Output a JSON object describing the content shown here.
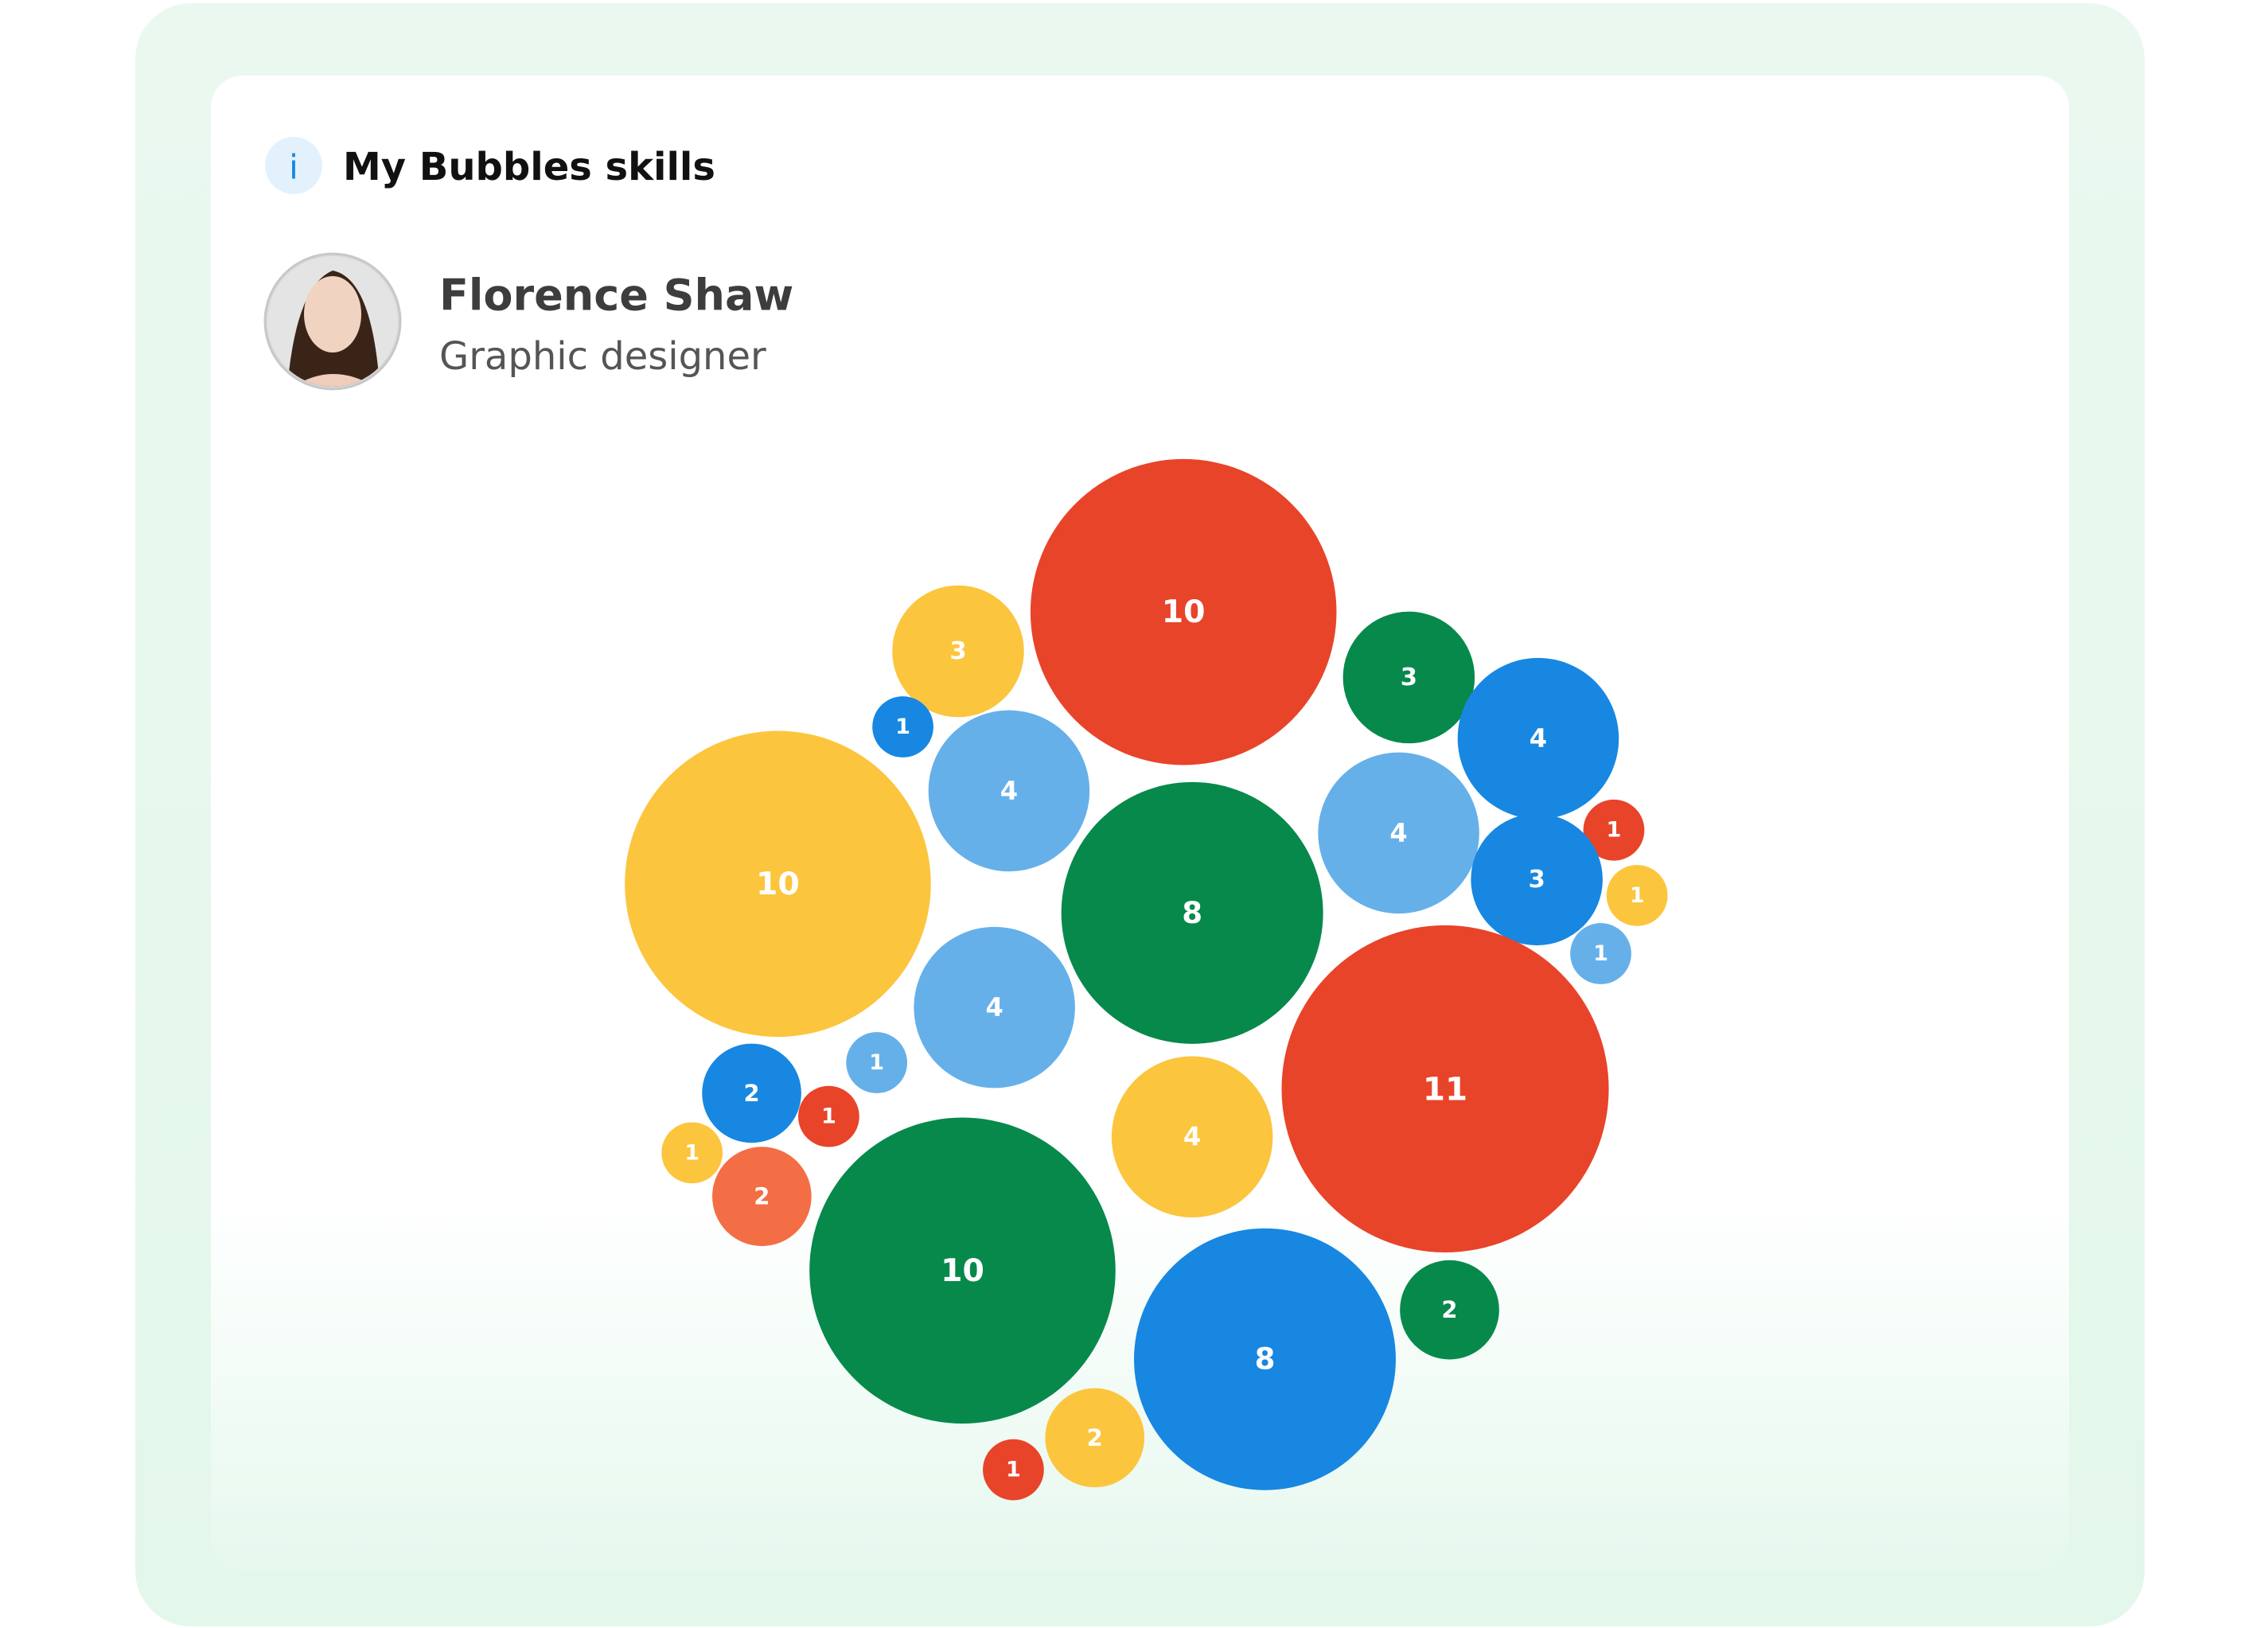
{
  "header": {
    "icon": "i",
    "title": "My Bubbles skills"
  },
  "profile": {
    "name": "Florence Shaw",
    "role": "Graphic designer"
  },
  "chart_data": {
    "type": "bubble",
    "values": [
      10,
      3,
      3,
      4,
      1,
      4,
      10,
      8,
      4,
      1,
      3,
      1,
      1,
      4,
      11,
      1,
      2,
      1,
      1,
      2,
      4,
      10,
      8,
      2,
      2,
      1
    ],
    "colors": [
      "#e8442a",
      "#fcc53e",
      "#07894c",
      "#1787e1",
      "#1787e1",
      "#66b0ea",
      "#fcc53e",
      "#07894c",
      "#66b0ea",
      "#e8442a",
      "#1787e1",
      "#fcc53e",
      "#66b0ea",
      "#66b0ea",
      "#e8442a",
      "#66b0ea",
      "#1787e1",
      "#e8442a",
      "#fcc53e",
      "#f36e45",
      "#fcc53e",
      "#07894c",
      "#1787e1",
      "#07894c",
      "#fcc53e",
      "#e8442a"
    ]
  }
}
